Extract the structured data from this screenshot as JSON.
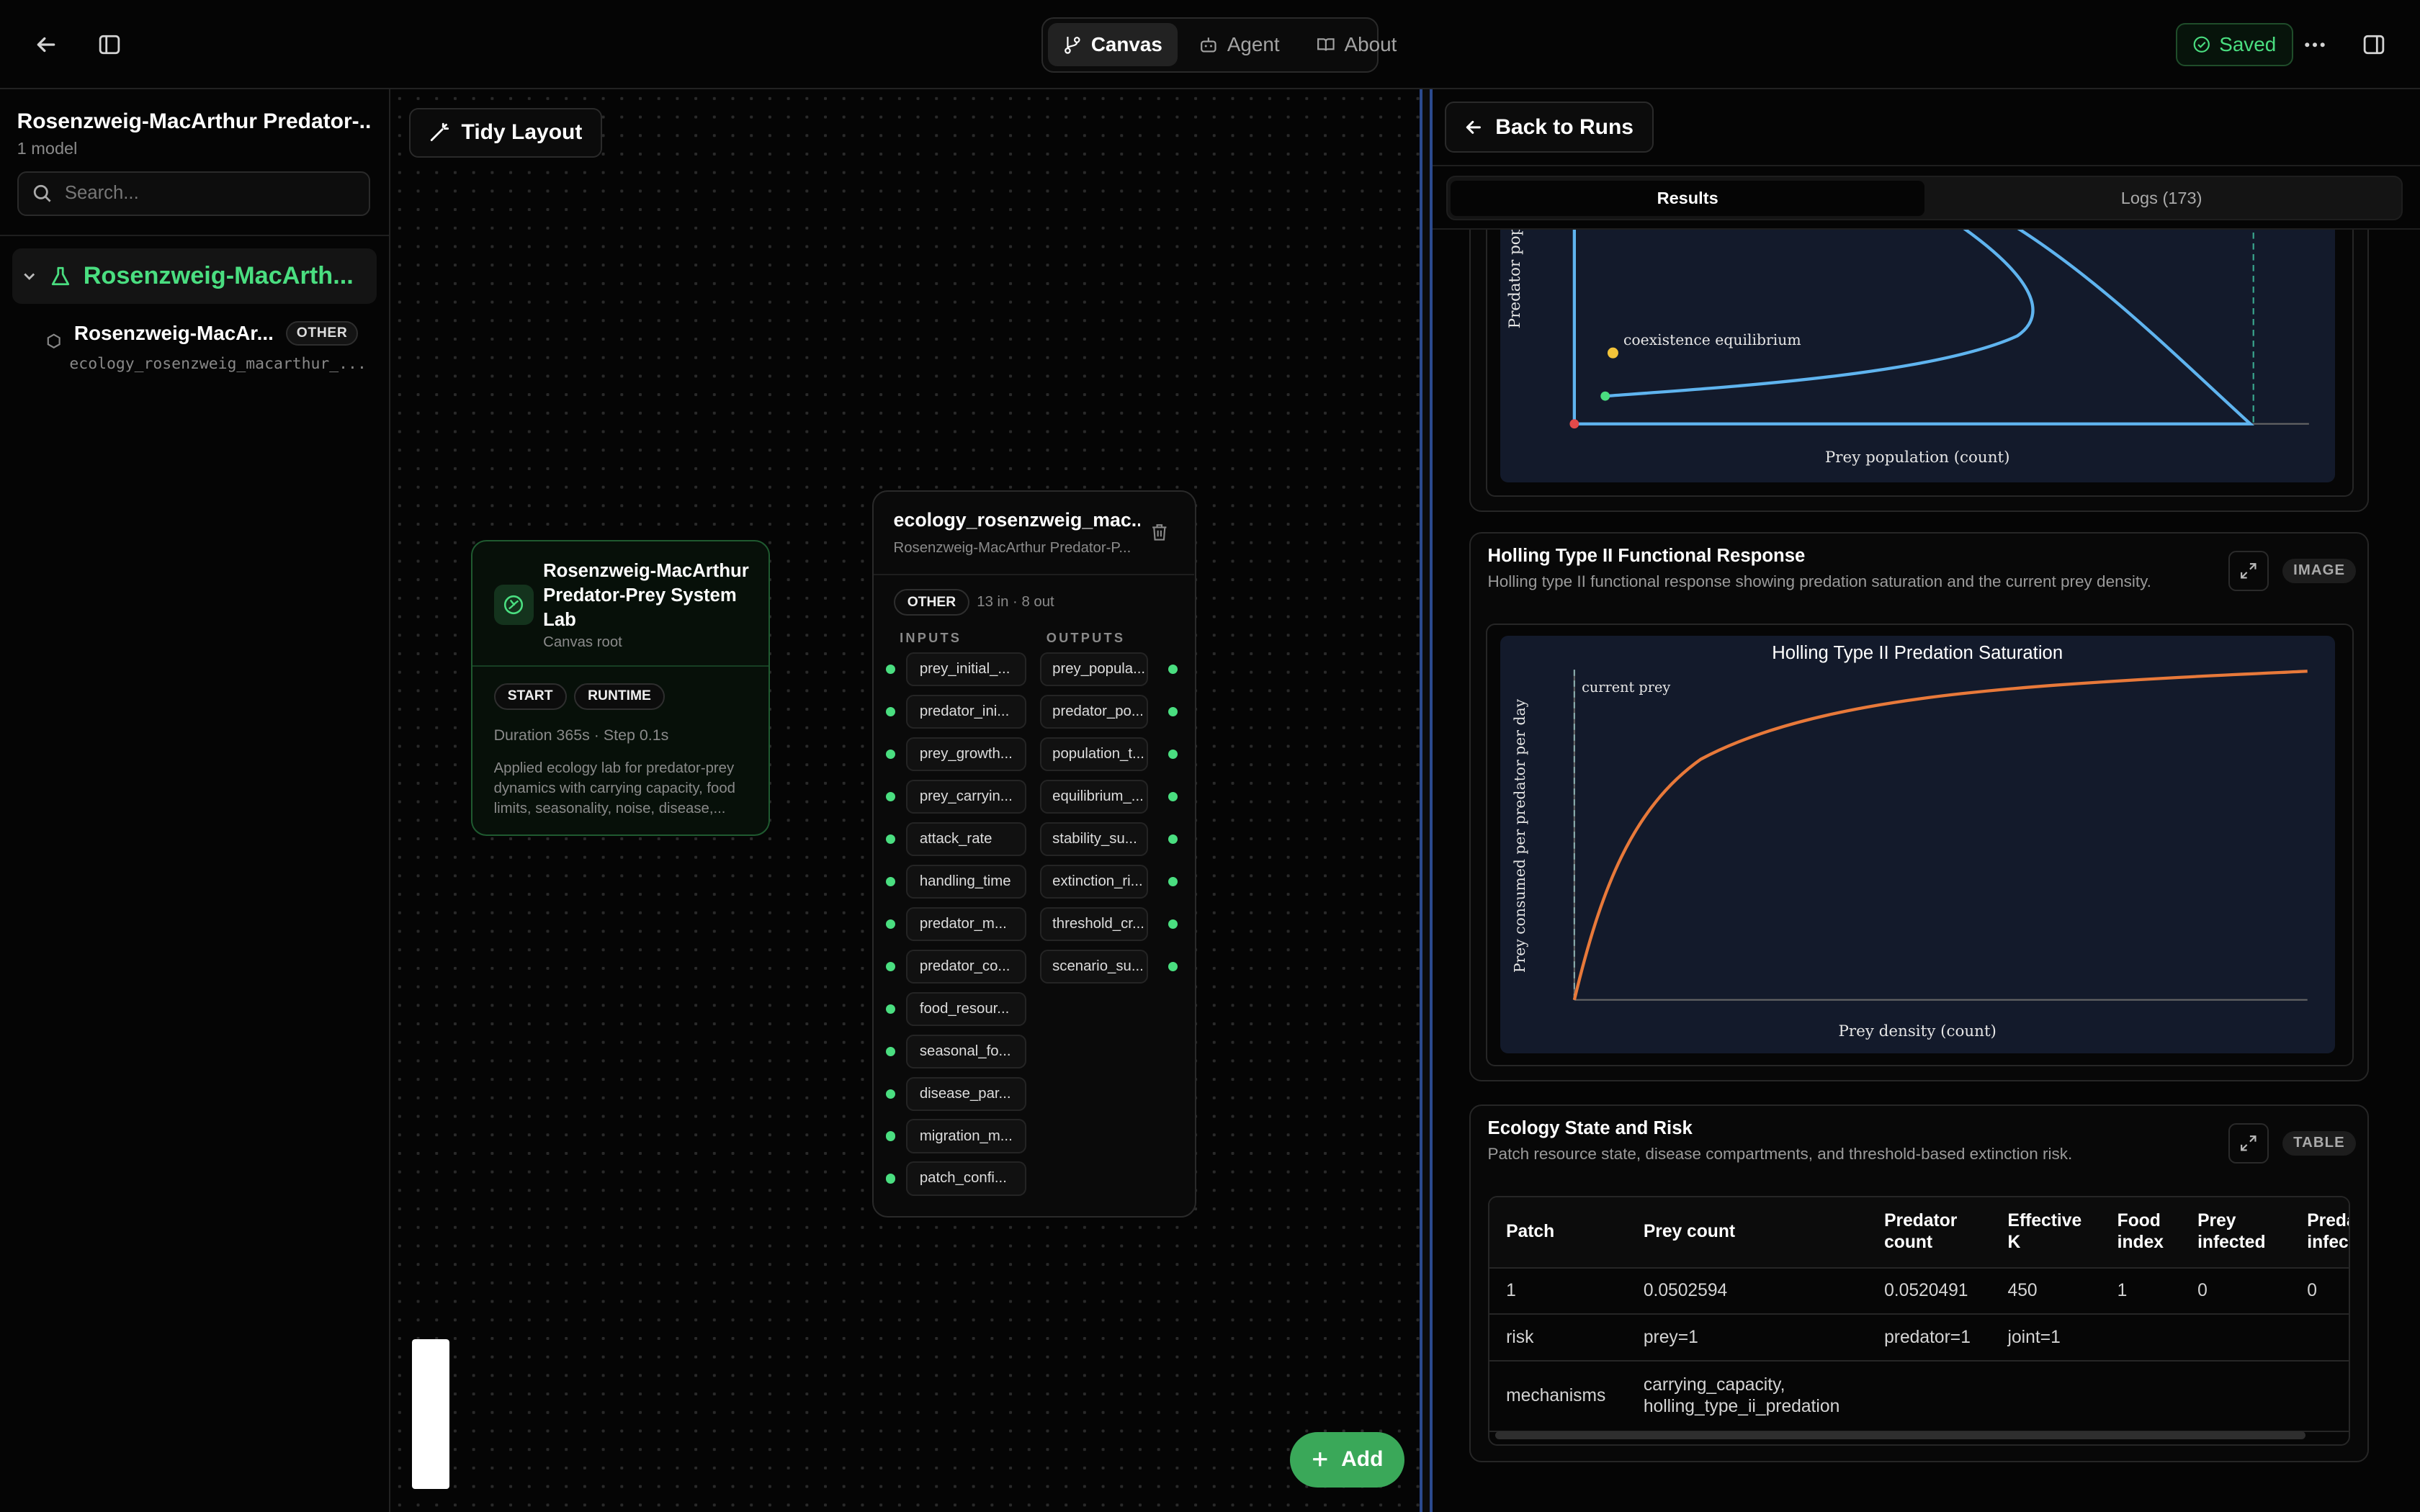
{
  "topbar": {
    "tabs": [
      {
        "label": "Canvas",
        "icon": "git-branch-icon"
      },
      {
        "label": "Agent",
        "icon": "bot-icon"
      },
      {
        "label": "About",
        "icon": "book-icon"
      }
    ],
    "saved_label": "Saved"
  },
  "sidebar": {
    "title": "Rosenzweig-MacArthur Predator-...",
    "subtitle": "1 model",
    "search_placeholder": "Search...",
    "root_label": "Rosenzweig-MacArth...",
    "child": {
      "name": "Rosenzweig-MacAr...",
      "tag": "OTHER",
      "module": "ecology_rosenzweig_macarthur_..."
    }
  },
  "canvas": {
    "tidy_label": "Tidy Layout",
    "add_label": "Add",
    "root_node": {
      "title": "Rosenzweig-MacArthur Predator-Prey System Lab",
      "subtitle": "Canvas root",
      "pills": [
        "START",
        "RUNTIME"
      ],
      "duration": "Duration 365s · Step 0.1s",
      "description": "Applied ecology lab for predator-prey dynamics with carrying capacity, food limits, seasonality, noise, disease,..."
    },
    "model_node": {
      "title": "ecology_rosenzweig_mac...",
      "subtitle": "Rosenzweig-MacArthur Predator-P...",
      "tag": "OTHER",
      "counts": "13 in · 8 out",
      "inputs_label": "INPUTS",
      "outputs_label": "OUTPUTS",
      "inputs": [
        "prey_initial_...",
        "predator_ini...",
        "prey_growth...",
        "prey_carryin...",
        "attack_rate",
        "handling_time",
        "predator_m...",
        "predator_co...",
        "food_resour...",
        "seasonal_fo...",
        "disease_par...",
        "migration_m...",
        "patch_confi..."
      ],
      "outputs": [
        "prey_popula...",
        "predator_po...",
        "population_t...",
        "equilibrium_...",
        "stability_su...",
        "extinction_ri...",
        "threshold_cr...",
        "scenario_su..."
      ]
    }
  },
  "panel": {
    "back_label": "Back to Runs",
    "tabs": [
      "Results",
      "Logs (173)"
    ],
    "phase_plot": {
      "ylabel": "Predator popul",
      "xlabel": "Prey population (count)",
      "annotation": "coexistence equilibrium"
    },
    "holling": {
      "title": "Holling Type II Functional Response",
      "subtitle": "Holling type II functional response showing predation saturation and the current prey density.",
      "kind": "IMAGE",
      "chart_title": "Holling Type II Predation Saturation",
      "xlabel": "Prey density (count)",
      "ylabel": "Prey consumed per predator per day",
      "annotation": "current prey"
    },
    "ecology_table": {
      "title": "Ecology State and Risk",
      "subtitle": "Patch resource state, disease compartments, and threshold-based extinction risk.",
      "kind": "TABLE",
      "headers": [
        "Patch",
        "Prey count",
        "Predator count",
        "Effective K",
        "Food index",
        "Prey infected",
        "Preda infect"
      ],
      "rows": [
        [
          "1",
          "0.0502594",
          "0.0520491",
          "450",
          "1",
          "0",
          "0"
        ],
        [
          "risk",
          "prey=1",
          "predator=1",
          "joint=1",
          "",
          "",
          ""
        ],
        [
          "mechanisms",
          "carrying_capacity, holling_type_ii_predation",
          "",
          "",
          "",
          "",
          ""
        ]
      ]
    }
  },
  "colors": {
    "accent_green": "#4ade80",
    "curve_blue": "#5fb4ef",
    "curve_orange": "#e8793a",
    "plot_bg": "#131a2b",
    "splitter_blue": "#2b4a8e"
  }
}
